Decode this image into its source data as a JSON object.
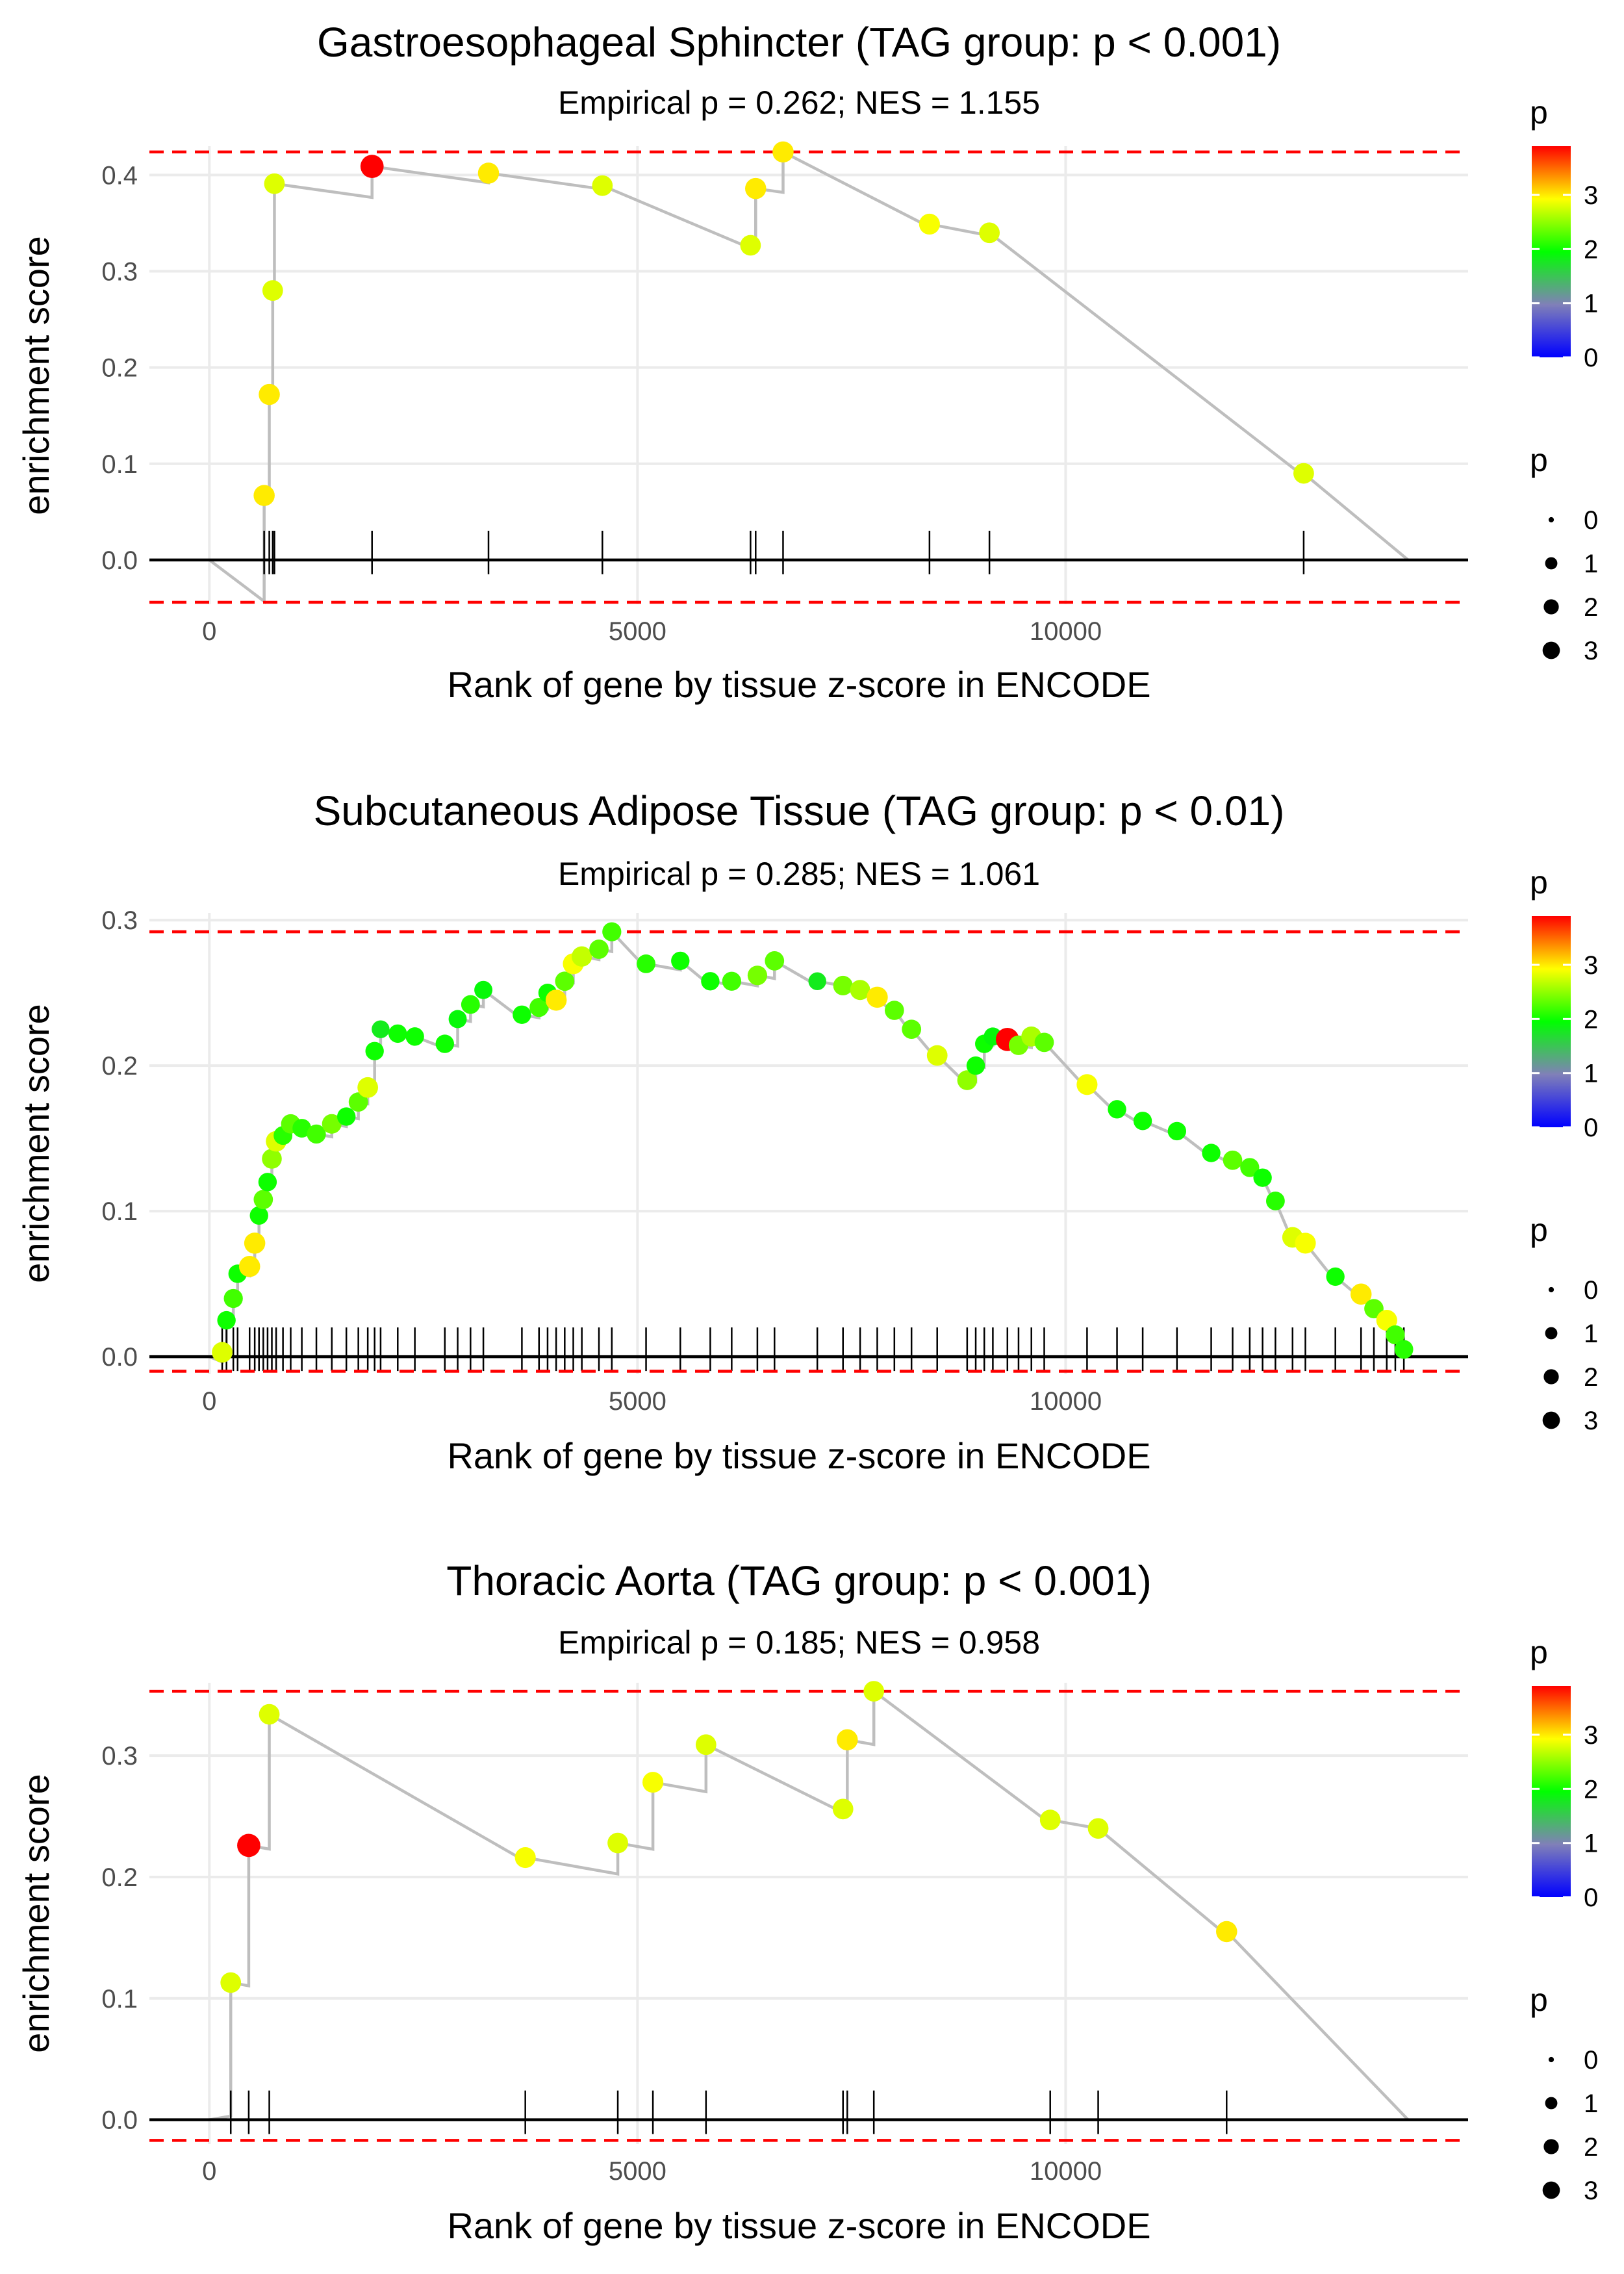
{
  "colors": {
    "grid": "#ebebeb",
    "zero_line": "#000000",
    "threshold": "#ff0000",
    "path": "#bebebe",
    "rug": "#000000",
    "gradient": [
      "#0000ff",
      "#8080b8",
      "#00ff00",
      "#ffff00",
      "#ff0000"
    ]
  },
  "legend": {
    "color_title": "p",
    "color_breaks": [
      "0",
      "1",
      "2",
      "3"
    ],
    "color_range": [
      0,
      3.9
    ],
    "size_title": "p",
    "size_breaks": [
      "0",
      "1",
      "2",
      "3"
    ]
  },
  "chart_data": [
    {
      "type": "line",
      "title": "Gastroesophageal Sphincter (TAG group: p < 0.001)",
      "subtitle": "Empirical p = 0.262; NES = 1.155",
      "xlabel": "Rank of gene by tissue z-score in ENCODE",
      "ylabel": "enrichment score",
      "xlim": [
        -700,
        14700
      ],
      "ylim": [
        -0.046,
        0.43
      ],
      "xticks": [
        0,
        5000,
        10000
      ],
      "xtick_labels": [
        "0",
        "5000",
        "10000"
      ],
      "yticks": [
        0,
        0.1,
        0.2,
        0.3,
        0.4
      ],
      "ytick_labels": [
        "0.0",
        "0.1",
        "0.2",
        "0.3",
        "0.4"
      ],
      "thresholds": [
        0.424,
        -0.044
      ],
      "end_rank": 14000,
      "hits": [
        {
          "x": 640,
          "y": 0.067,
          "p": 3.0
        },
        {
          "x": 700,
          "y": 0.172,
          "p": 3.0
        },
        {
          "x": 740,
          "y": 0.28,
          "p": 2.8
        },
        {
          "x": 760,
          "y": 0.391,
          "p": 2.8
        },
        {
          "x": 1900,
          "y": 0.409,
          "p": 3.9
        },
        {
          "x": 3260,
          "y": 0.402,
          "p": 3.0
        },
        {
          "x": 4590,
          "y": 0.389,
          "p": 2.8
        },
        {
          "x": 6320,
          "y": 0.327,
          "p": 2.8
        },
        {
          "x": 6380,
          "y": 0.386,
          "p": 3.0
        },
        {
          "x": 6700,
          "y": 0.424,
          "p": 3.0
        },
        {
          "x": 8410,
          "y": 0.349,
          "p": 2.9
        },
        {
          "x": 9110,
          "y": 0.34,
          "p": 2.8
        },
        {
          "x": 12780,
          "y": 0.09,
          "p": 2.8
        }
      ]
    },
    {
      "type": "line",
      "title": "Subcutaneous Adipose Tissue (TAG group: p < 0.01)",
      "subtitle": "Empirical p = 0.285; NES = 1.061",
      "xlabel": "Rank of gene by tissue z-score in ENCODE",
      "ylabel": "enrichment score",
      "xlim": [
        -700,
        14700
      ],
      "ylim": [
        -0.012,
        0.305
      ],
      "xticks": [
        0,
        5000,
        10000
      ],
      "xtick_labels": [
        "0",
        "5000",
        "10000"
      ],
      "yticks": [
        0,
        0.1,
        0.2,
        0.3
      ],
      "ytick_labels": [
        "0.0",
        "0.1",
        "0.2",
        "0.3"
      ],
      "thresholds": [
        0.292,
        -0.01
      ],
      "end_rank": 14000,
      "hits": [
        {
          "x": 150,
          "y": 0.003,
          "p": 2.8
        },
        {
          "x": 200,
          "y": 0.025,
          "p": 2.0
        },
        {
          "x": 280,
          "y": 0.04,
          "p": 2.2
        },
        {
          "x": 330,
          "y": 0.057,
          "p": 2.0
        },
        {
          "x": 470,
          "y": 0.062,
          "p": 3.0
        },
        {
          "x": 530,
          "y": 0.078,
          "p": 3.0
        },
        {
          "x": 580,
          "y": 0.097,
          "p": 2.0
        },
        {
          "x": 630,
          "y": 0.108,
          "p": 2.3
        },
        {
          "x": 680,
          "y": 0.12,
          "p": 2.0
        },
        {
          "x": 730,
          "y": 0.136,
          "p": 2.5
        },
        {
          "x": 780,
          "y": 0.148,
          "p": 2.8
        },
        {
          "x": 860,
          "y": 0.152,
          "p": 2.1
        },
        {
          "x": 950,
          "y": 0.16,
          "p": 2.3
        },
        {
          "x": 1080,
          "y": 0.157,
          "p": 2.1
        },
        {
          "x": 1250,
          "y": 0.153,
          "p": 2.2
        },
        {
          "x": 1430,
          "y": 0.16,
          "p": 2.4
        },
        {
          "x": 1600,
          "y": 0.165,
          "p": 2.0
        },
        {
          "x": 1740,
          "y": 0.175,
          "p": 2.3
        },
        {
          "x": 1850,
          "y": 0.185,
          "p": 2.8
        },
        {
          "x": 1930,
          "y": 0.21,
          "p": 2.0
        },
        {
          "x": 2000,
          "y": 0.225,
          "p": 1.8
        },
        {
          "x": 2200,
          "y": 0.222,
          "p": 2.0
        },
        {
          "x": 2400,
          "y": 0.22,
          "p": 2.0
        },
        {
          "x": 2750,
          "y": 0.215,
          "p": 2.0
        },
        {
          "x": 2900,
          "y": 0.232,
          "p": 1.9
        },
        {
          "x": 3050,
          "y": 0.242,
          "p": 2.1
        },
        {
          "x": 3200,
          "y": 0.252,
          "p": 1.9
        },
        {
          "x": 3650,
          "y": 0.235,
          "p": 2.0
        },
        {
          "x": 3850,
          "y": 0.24,
          "p": 2.2
        },
        {
          "x": 3950,
          "y": 0.25,
          "p": 2.0
        },
        {
          "x": 4050,
          "y": 0.245,
          "p": 3.0
        },
        {
          "x": 4150,
          "y": 0.258,
          "p": 2.3
        },
        {
          "x": 4250,
          "y": 0.27,
          "p": 2.9
        },
        {
          "x": 4350,
          "y": 0.275,
          "p": 2.7
        },
        {
          "x": 4550,
          "y": 0.28,
          "p": 2.3
        },
        {
          "x": 4700,
          "y": 0.292,
          "p": 2.2
        },
        {
          "x": 5100,
          "y": 0.27,
          "p": 2.1
        },
        {
          "x": 5500,
          "y": 0.272,
          "p": 2.0
        },
        {
          "x": 5850,
          "y": 0.258,
          "p": 2.0
        },
        {
          "x": 6100,
          "y": 0.258,
          "p": 2.2
        },
        {
          "x": 6400,
          "y": 0.262,
          "p": 2.4
        },
        {
          "x": 6600,
          "y": 0.272,
          "p": 2.3
        },
        {
          "x": 7100,
          "y": 0.258,
          "p": 1.8
        },
        {
          "x": 7400,
          "y": 0.255,
          "p": 2.4
        },
        {
          "x": 7600,
          "y": 0.252,
          "p": 2.6
        },
        {
          "x": 7800,
          "y": 0.247,
          "p": 3.0
        },
        {
          "x": 8000,
          "y": 0.238,
          "p": 2.3
        },
        {
          "x": 8200,
          "y": 0.225,
          "p": 2.3
        },
        {
          "x": 8500,
          "y": 0.207,
          "p": 2.8
        },
        {
          "x": 8850,
          "y": 0.19,
          "p": 2.5
        },
        {
          "x": 8950,
          "y": 0.2,
          "p": 2.0
        },
        {
          "x": 9050,
          "y": 0.215,
          "p": 2.0
        },
        {
          "x": 9150,
          "y": 0.22,
          "p": 1.9
        },
        {
          "x": 9320,
          "y": 0.218,
          "p": 3.9
        },
        {
          "x": 9450,
          "y": 0.214,
          "p": 2.4
        },
        {
          "x": 9600,
          "y": 0.22,
          "p": 2.6
        },
        {
          "x": 9750,
          "y": 0.216,
          "p": 2.3
        },
        {
          "x": 10250,
          "y": 0.187,
          "p": 2.9
        },
        {
          "x": 10600,
          "y": 0.17,
          "p": 2.0
        },
        {
          "x": 10900,
          "y": 0.162,
          "p": 2.0
        },
        {
          "x": 11300,
          "y": 0.155,
          "p": 2.0
        },
        {
          "x": 11700,
          "y": 0.14,
          "p": 2.0
        },
        {
          "x": 11950,
          "y": 0.135,
          "p": 2.3
        },
        {
          "x": 12150,
          "y": 0.13,
          "p": 2.2
        },
        {
          "x": 12300,
          "y": 0.123,
          "p": 2.0
        },
        {
          "x": 12450,
          "y": 0.107,
          "p": 2.1
        },
        {
          "x": 12650,
          "y": 0.082,
          "p": 2.8
        },
        {
          "x": 12800,
          "y": 0.078,
          "p": 2.9
        },
        {
          "x": 13150,
          "y": 0.055,
          "p": 2.0
        },
        {
          "x": 13450,
          "y": 0.043,
          "p": 3.0
        },
        {
          "x": 13600,
          "y": 0.033,
          "p": 2.3
        },
        {
          "x": 13750,
          "y": 0.025,
          "p": 2.9
        },
        {
          "x": 13850,
          "y": 0.015,
          "p": 2.2
        },
        {
          "x": 13950,
          "y": 0.005,
          "p": 2.1
        }
      ]
    },
    {
      "type": "line",
      "title": "Thoracic Aorta (TAG group: p < 0.001)",
      "subtitle": "Empirical p = 0.185; NES = 0.958",
      "xlabel": "Rank of gene by tissue z-score in ENCODE",
      "ylabel": "enrichment score",
      "xlim": [
        -700,
        14700
      ],
      "ylim": [
        -0.02,
        0.36
      ],
      "xticks": [
        0,
        5000,
        10000
      ],
      "xtick_labels": [
        "0",
        "5000",
        "10000"
      ],
      "yticks": [
        0,
        0.1,
        0.2,
        0.3
      ],
      "ytick_labels": [
        "0.0",
        "0.1",
        "0.2",
        "0.3"
      ],
      "thresholds": [
        0.353,
        -0.017
      ],
      "end_rank": 14000,
      "hits": [
        {
          "x": 250,
          "y": 0.113,
          "p": 2.8
        },
        {
          "x": 460,
          "y": 0.226,
          "p": 3.9
        },
        {
          "x": 700,
          "y": 0.334,
          "p": 2.8
        },
        {
          "x": 3690,
          "y": 0.216,
          "p": 2.9
        },
        {
          "x": 4770,
          "y": 0.228,
          "p": 2.8
        },
        {
          "x": 5180,
          "y": 0.278,
          "p": 2.9
        },
        {
          "x": 5800,
          "y": 0.309,
          "p": 2.8
        },
        {
          "x": 7400,
          "y": 0.256,
          "p": 2.8
        },
        {
          "x": 7450,
          "y": 0.313,
          "p": 3.0
        },
        {
          "x": 7760,
          "y": 0.353,
          "p": 2.8
        },
        {
          "x": 9820,
          "y": 0.247,
          "p": 2.8
        },
        {
          "x": 10380,
          "y": 0.24,
          "p": 2.8
        },
        {
          "x": 11880,
          "y": 0.155,
          "p": 3.0
        }
      ]
    }
  ]
}
